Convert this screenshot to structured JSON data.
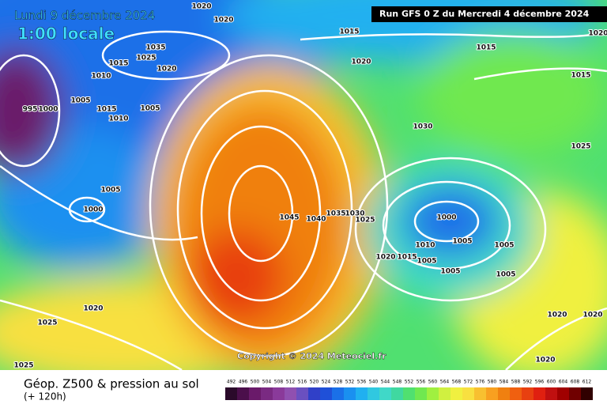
{
  "header": {
    "date": "Lundi 9 décembre 2024",
    "local_time": "1:00 locale",
    "run": "Run GFS 0 Z du Mercredi 4 décembre 2024"
  },
  "copyright": "Copyright © 2024 Meteociel.fr",
  "footer": {
    "title": "Géop. Z500 & pression au sol",
    "lead": "(+ 120h)"
  },
  "isobar_labels": [
    "1020",
    "1020",
    "1035",
    "1015",
    "1025",
    "1020",
    "1010",
    "1005",
    "995",
    "1000",
    "1015",
    "1010",
    "1005",
    "1005",
    "1000",
    "1015",
    "1020",
    "1015",
    "1015",
    "1020",
    "1030",
    "1025",
    "1045",
    "1040",
    "1035",
    "1030",
    "1025",
    "1000",
    "1010",
    "1005",
    "1005",
    "1020",
    "1015",
    "1005",
    "1005",
    "1005",
    "1020",
    "1025",
    "1020",
    "1020",
    "1020",
    "1025"
  ],
  "colorbar": {
    "labels": [
      492,
      496,
      500,
      504,
      508,
      512,
      516,
      520,
      524,
      528,
      532,
      536,
      540,
      544,
      548,
      552,
      556,
      560,
      564,
      568,
      572,
      576,
      580,
      584,
      588,
      592,
      596,
      600,
      604,
      608,
      612
    ],
    "colors": [
      "#2a0a2a",
      "#4b0f4b",
      "#6a1a6a",
      "#7a2a82",
      "#8a3a9a",
      "#9050b0",
      "#6a50c0",
      "#3040c8",
      "#1f50d8",
      "#1a70e8",
      "#1a90f0",
      "#20b0f0",
      "#30c8e0",
      "#40d8c8",
      "#40d8a0",
      "#50e070",
      "#70e850",
      "#a0f040",
      "#d0f040",
      "#f0f040",
      "#f8e040",
      "#f8c030",
      "#f8a020",
      "#f08010",
      "#f06010",
      "#e84010",
      "#e02010",
      "#c01010",
      "#a00000",
      "#700000",
      "#300000"
    ]
  }
}
